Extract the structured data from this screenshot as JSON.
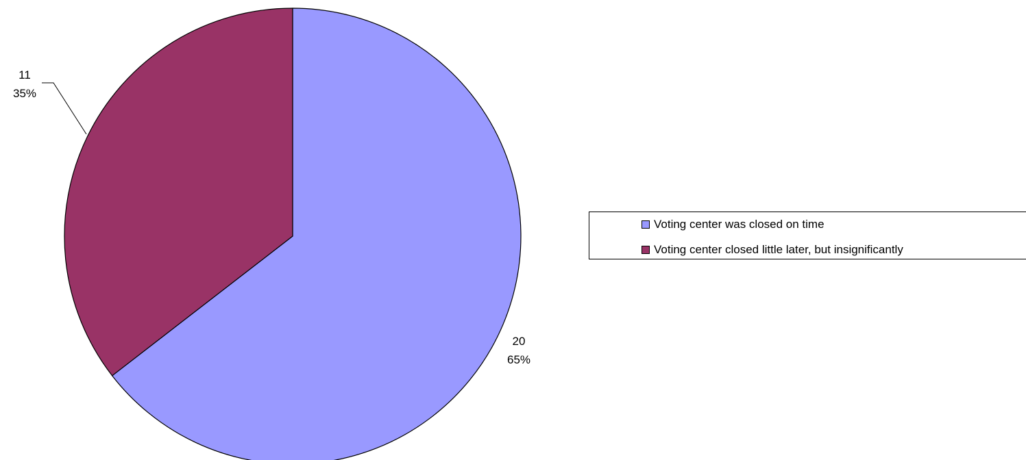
{
  "chart_data": {
    "type": "pie",
    "slices": [
      {
        "label": "Voting center was closed on time",
        "value": 20,
        "percent": "65%",
        "color": "#9999FF"
      },
      {
        "label": "Voting center closed little later, but insignificantly",
        "value": 11,
        "percent": "35%",
        "color": "#993366"
      }
    ],
    "legend_placement": "right",
    "start_angle": "12 o'clock",
    "direction": "clockwise"
  }
}
